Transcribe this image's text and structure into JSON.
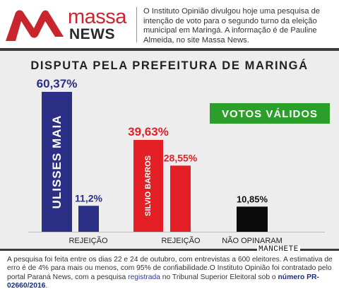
{
  "header": {
    "logo_line1": "massa",
    "logo_line2": "NEWS",
    "intro": "O Instituto Opinião divulgou hoje uma pesquisa de intenção de voto para o segundo turno da eleição municipal em Maringá. A informação é de Pauline Almeida, no site Massa News."
  },
  "colors": {
    "brand_red": "#c8252c",
    "navy": "#2b2f86",
    "red": "#e41f26",
    "black": "#0b0b0b",
    "green_badge": "#2aa02b"
  },
  "chart_data": {
    "type": "bar",
    "title": "DISPUTA PELA PREFEITURA DE MARINGÁ",
    "badge": "VOTOS VÁLIDOS",
    "ylim": [
      0,
      70
    ],
    "bars": [
      {
        "name": "ULISSES MAIA",
        "value": 60.37,
        "label": "60,37%",
        "color": "#2b2f86",
        "category": ""
      },
      {
        "name": "",
        "value": 11.2,
        "label": "11,2%",
        "color": "#2b2f86",
        "category": "REJEIÇÃO"
      },
      {
        "name": "SILVIO BARROS",
        "value": 39.63,
        "label": "39,63%",
        "color": "#e41f26",
        "category": ""
      },
      {
        "name": "",
        "value": 28.55,
        "label": "28,55%",
        "color": "#e41f26",
        "category": "REJEIÇÃO"
      },
      {
        "name": "",
        "value": 10.85,
        "label": "10,85%",
        "color": "#0b0b0b",
        "category": "NÃO OPINARAM"
      }
    ]
  },
  "footer": {
    "text_1": "A pesquisa foi feita entre os dias 22 e 24 de outubro, com entrevistas a 600 eleitores. A estimativa de erro é de 4% para mais ou menos, com 95% de confiabilidade.O Instituto Opinião foi contratado pelo portal Paraná News, com a pesquisa ",
    "registrada": "registrada",
    "text_2": " no Tribunal Superior Eleitoral sob o ",
    "numero": "número PR-02660/2016",
    "text_3": ".",
    "watermark": "MANCHETE"
  }
}
